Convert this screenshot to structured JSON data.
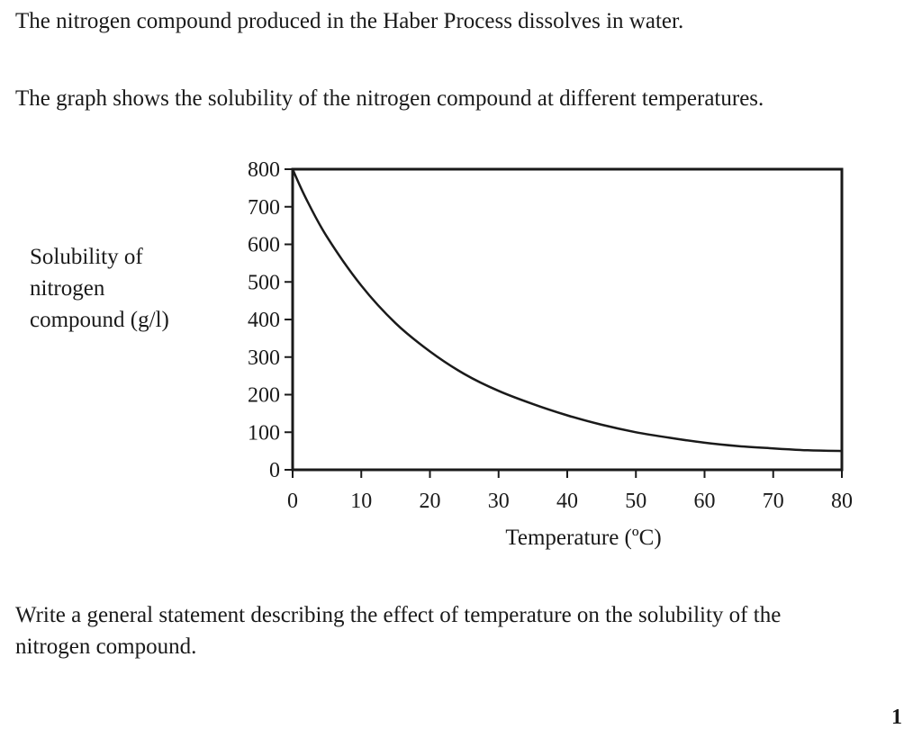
{
  "question": {
    "intro": "The nitrogen compound produced in the Haber Process dissolves in water.",
    "graph_intro": "The graph shows the solubility of the nitrogen compound at different temperatures.",
    "prompt": "Write a general statement describing the effect of temperature on the solubility of the nitrogen compound.",
    "marks": "1"
  },
  "chart_data": {
    "type": "line",
    "title": "",
    "xlabel": "Temperature (ºC)",
    "ylabel_lines": [
      "Solubility of",
      "nitrogen",
      "compound (g/l)"
    ],
    "xlim": [
      0,
      80
    ],
    "ylim": [
      0,
      800
    ],
    "x_ticks": [
      0,
      10,
      20,
      30,
      40,
      50,
      60,
      70,
      80
    ],
    "y_ticks": [
      0,
      100,
      200,
      300,
      400,
      500,
      600,
      700,
      800
    ],
    "grid": false,
    "series": [
      {
        "x": [
          0,
          2,
          5,
          10,
          15,
          20,
          25,
          30,
          35,
          40,
          45,
          50,
          55,
          60,
          65,
          70,
          75,
          80
        ],
        "y": [
          800,
          720,
          620,
          490,
          390,
          315,
          255,
          210,
          175,
          145,
          120,
          100,
          85,
          72,
          63,
          57,
          52,
          50
        ]
      }
    ]
  }
}
